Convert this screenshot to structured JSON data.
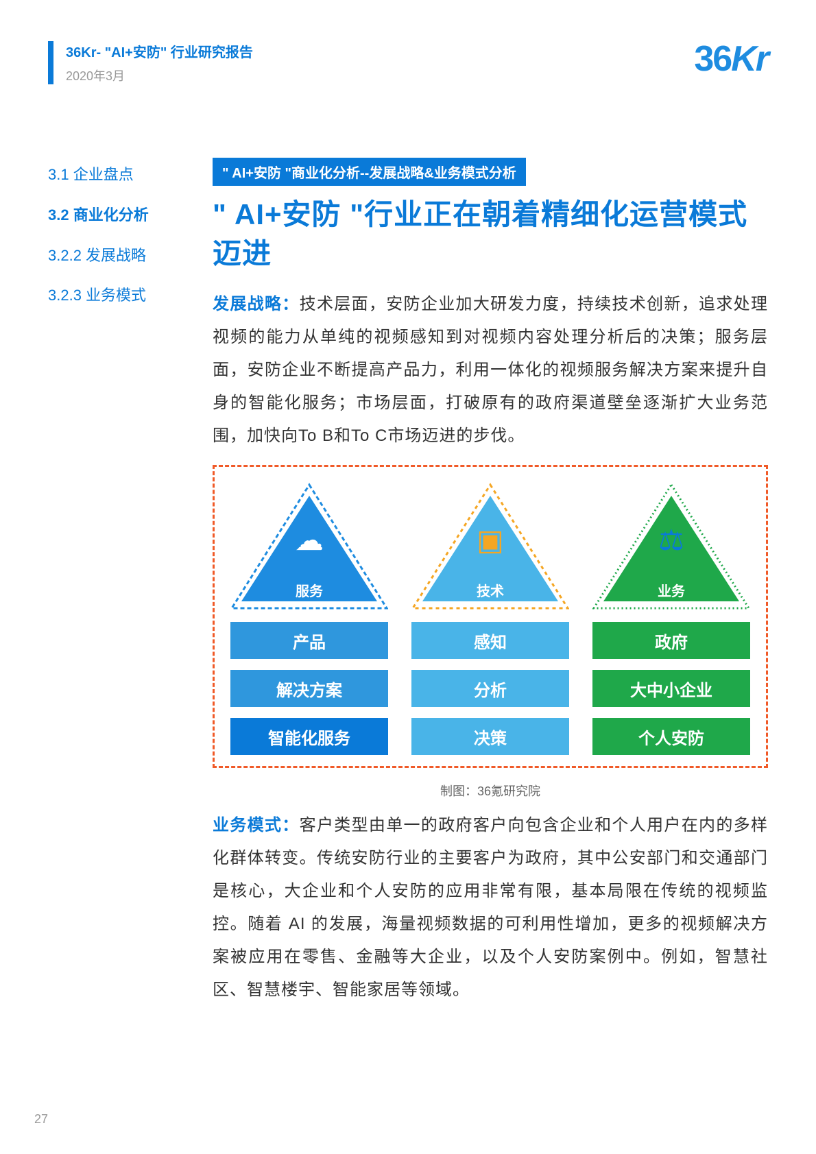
{
  "header": {
    "title": "36Kr- \"AI+安防\" 行业研究报告",
    "date": "2020年3月",
    "logo_prefix": "36",
    "logo_suffix": "Kr"
  },
  "sidebar": {
    "items": [
      {
        "label": "3.1 企业盘点",
        "active": false
      },
      {
        "label": "3.2 商业化分析",
        "active": true
      },
      {
        "label": "3.2.2 发展战略",
        "active": false
      },
      {
        "label": "3.2.3 业务模式",
        "active": false
      }
    ]
  },
  "tag": "\" AI+安防 \"商业化分析--发展战略&业务模式分析",
  "title": "\" AI+安防 \"行业正在朝着精细化运营模式迈进",
  "para1": {
    "label": "发展战略：",
    "text": "技术层面，安防企业加大研发力度，持续技术创新，追求处理视频的能力从单纯的视频感知到对视频内容处理分析后的决策；服务层面，安防企业不断提高产品力，利用一体化的视频服务解决方案来提升自身的智能化服务；市场层面，打破原有的政府渠道壁垒逐渐扩大业务范围，加快向To B和To C市场迈进的步伐。"
  },
  "diagram": {
    "border_color": "#f05a28",
    "caption": "制图：36氪研究院",
    "columns": [
      {
        "triangle": {
          "label": "服务",
          "fill": "#1e8ce0",
          "outline": "#1e8ce0",
          "outline_dash": "6,4",
          "icon": "☁",
          "icon_color": "#ffffff"
        },
        "pills": [
          {
            "text": "产品",
            "bg": "#2f97dd"
          },
          {
            "text": "解决方案",
            "bg": "#2f97dd"
          },
          {
            "text": "智能化服务",
            "bg": "#0a7ad8"
          }
        ]
      },
      {
        "triangle": {
          "label": "技术",
          "fill": "#49b4e8",
          "outline": "#f5a623",
          "outline_dash": "5,5",
          "icon": "▣",
          "icon_color": "#f5a623"
        },
        "pills": [
          {
            "text": "感知",
            "bg": "#49b4e8"
          },
          {
            "text": "分析",
            "bg": "#49b4e8"
          },
          {
            "text": "决策",
            "bg": "#49b4e8"
          }
        ]
      },
      {
        "triangle": {
          "label": "业务",
          "fill": "#1fa84a",
          "outline": "#1fa84a",
          "outline_dash": "2,4",
          "icon": "⚖",
          "icon_color": "#0a7ad8"
        },
        "pills": [
          {
            "text": "政府",
            "bg": "#1fa84a"
          },
          {
            "text": "大中小企业",
            "bg": "#1fa84a"
          },
          {
            "text": "个人安防",
            "bg": "#1fa84a"
          }
        ]
      }
    ]
  },
  "para2": {
    "label": "业务模式：",
    "text": "客户类型由单一的政府客户向包含企业和个人用户在内的多样化群体转变。传统安防行业的主要客户为政府，其中公安部门和交通部门是核心，大企业和个人安防的应用非常有限，基本局限在传统的视频监控。随着 AI 的发展，海量视频数据的可利用性增加，更多的视频解决方案被应用在零售、金融等大企业，以及个人安防案例中。例如，智慧社区、智慧楼宇、智能家居等领域。"
  },
  "page_number": "27"
}
